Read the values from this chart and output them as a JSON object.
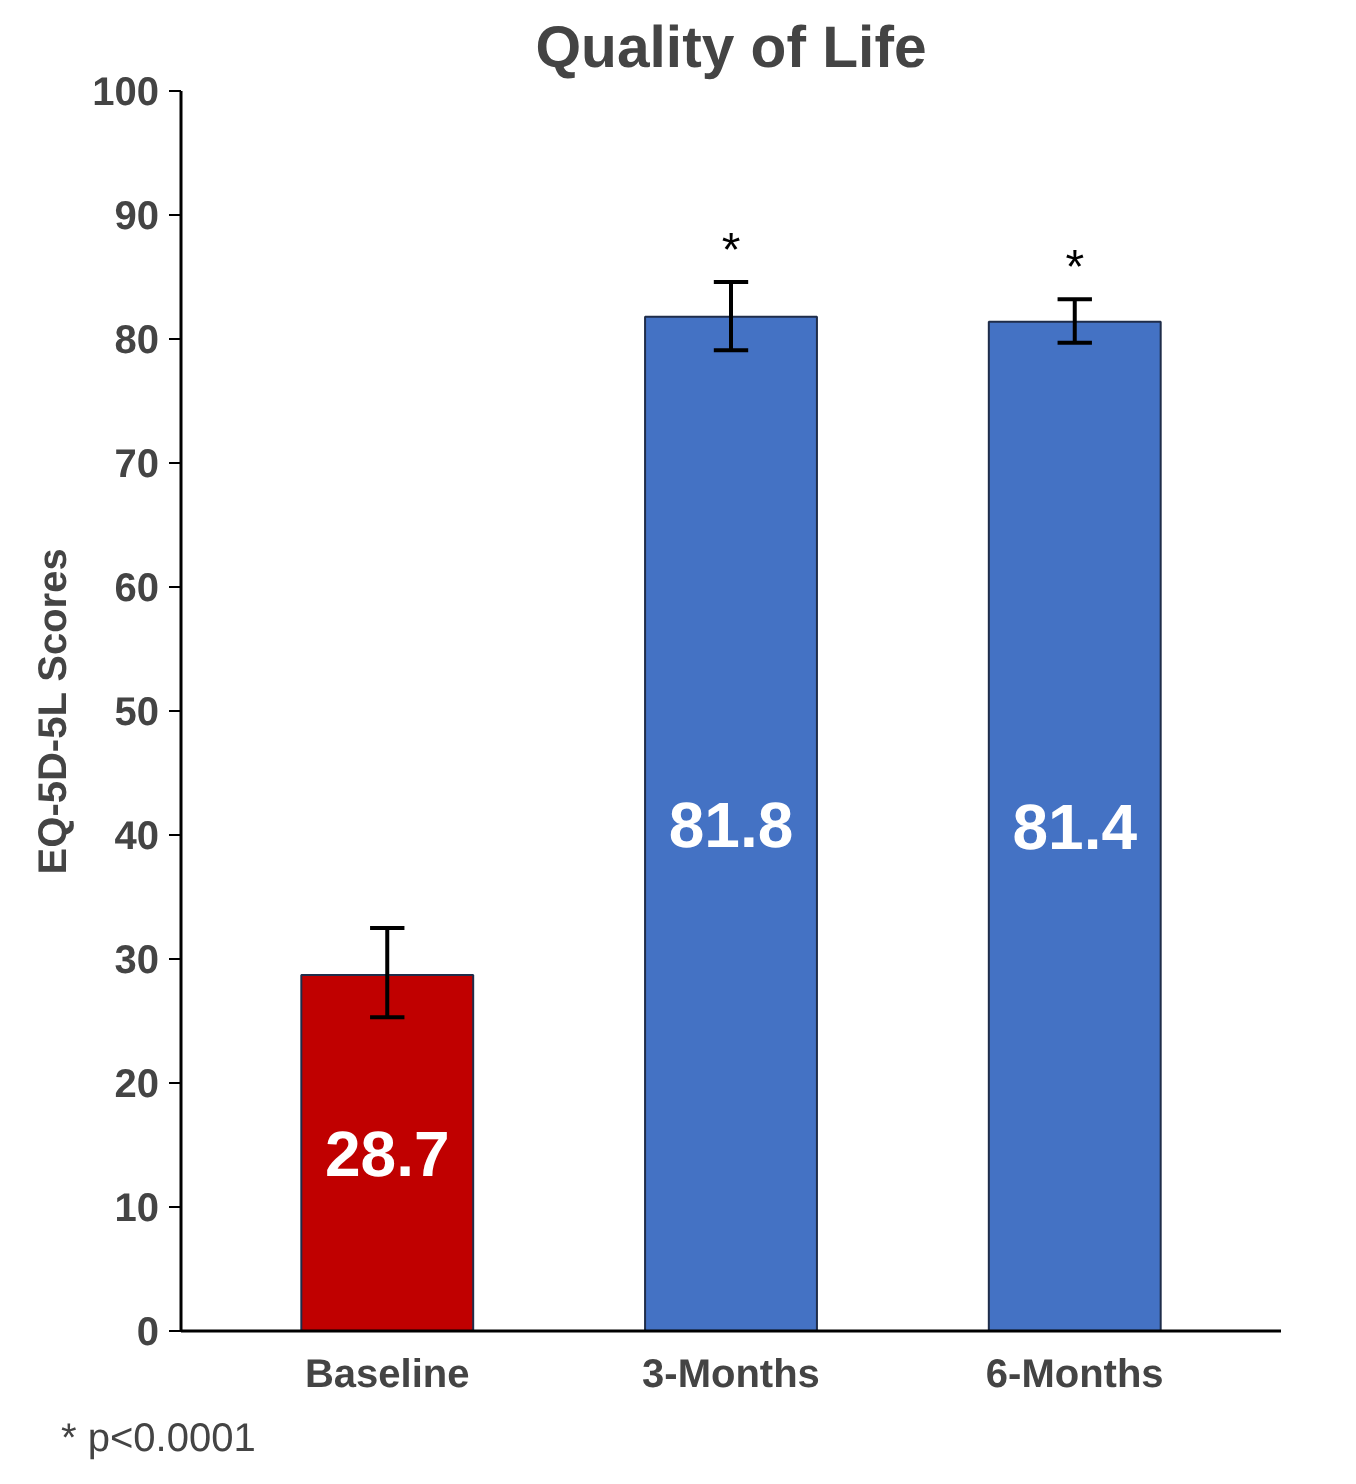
{
  "chart_data": {
    "type": "bar",
    "title": "Quality of Life",
    "ylabel": "EQ-5D-5L Scores",
    "categories": [
      "Baseline",
      "3-Months",
      "6-Months"
    ],
    "values": [
      28.7,
      81.8,
      81.4
    ],
    "colors": [
      "#c00000",
      "#4472c4",
      "#4472c4"
    ],
    "errors": [
      [
        25.3,
        32.5
      ],
      [
        79.1,
        84.6
      ],
      [
        79.7,
        83.2
      ]
    ],
    "ylim": [
      0,
      100
    ],
    "yticks": [
      0,
      10,
      20,
      30,
      40,
      50,
      60,
      70,
      80,
      90,
      100
    ],
    "grid": false,
    "data_labels": true,
    "annotations": [
      {
        "text": "*",
        "x": "3-Months",
        "y": 84.6
      },
      {
        "text": "*",
        "x": "6-Months",
        "y": 83.2
      },
      "* p<0.0001"
    ]
  }
}
